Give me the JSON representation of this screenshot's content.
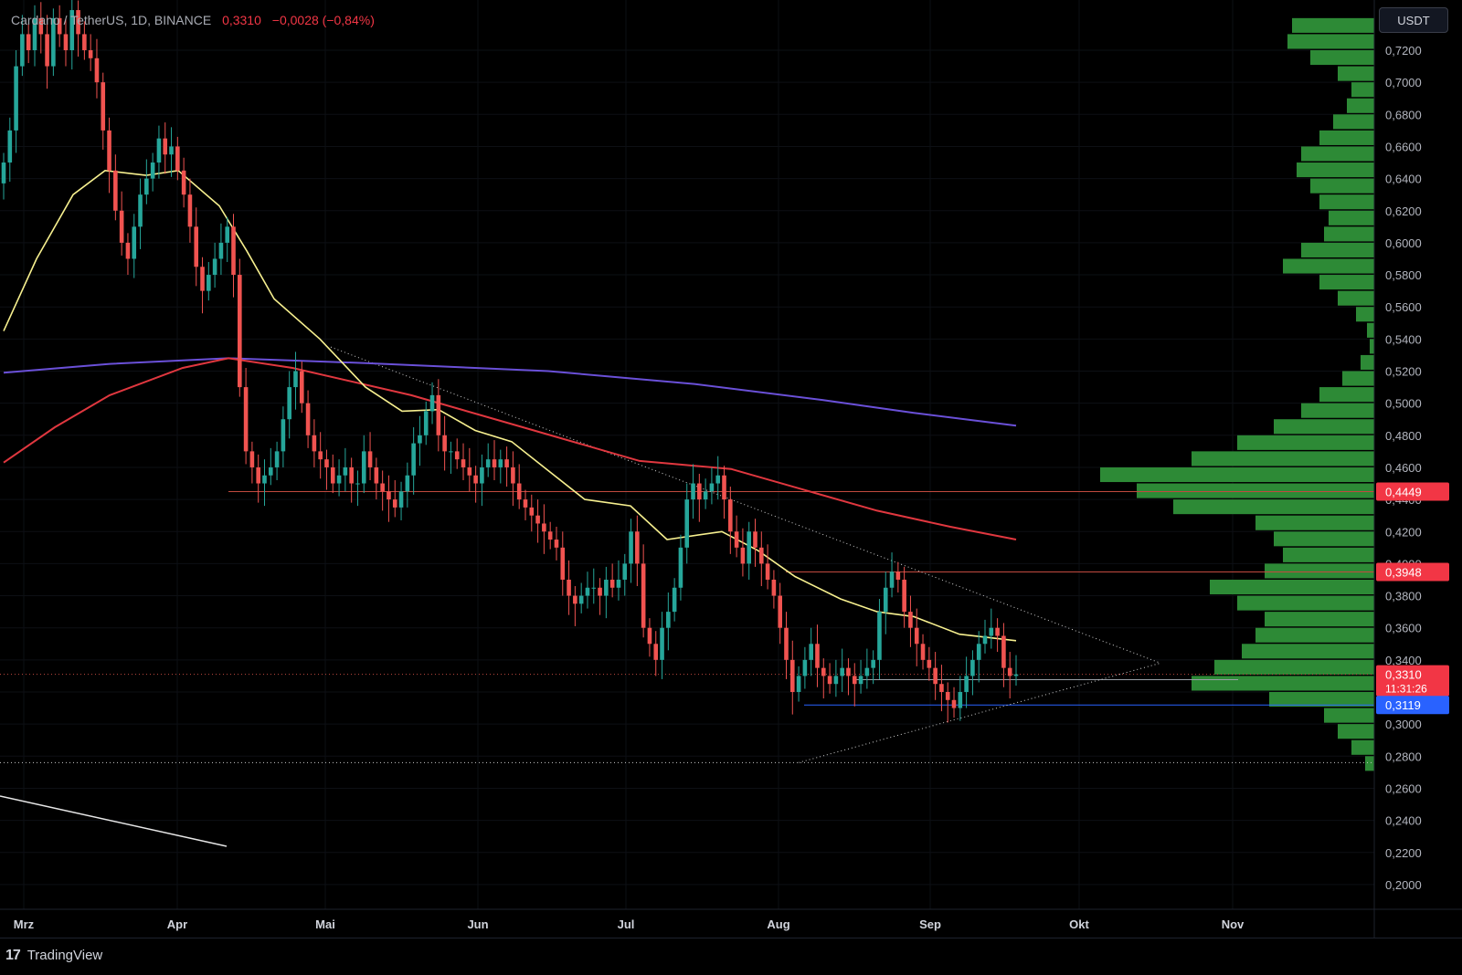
{
  "header": {
    "symbol": "Cardano / TetherUS, 1D, BINANCE",
    "last": "0,3310",
    "change": "−0,0028 (−0,84%)"
  },
  "toolbar": {
    "currency": "USDT"
  },
  "footer": {
    "brand": "TradingView"
  },
  "colors": {
    "up": "#26a69a",
    "down": "#f05350",
    "sma50": "#f7f08f",
    "sma100": "#e0373f",
    "sma200": "#6a50d8",
    "volume_profile": "#2d8a36",
    "blue_level": "#2962ff"
  },
  "chart_data": {
    "type": "candlestick",
    "title": "Cardano / TetherUS, 1D, BINANCE",
    "x_ticks": [
      "Mrz",
      "Apr",
      "Mai",
      "Jun",
      "Jul",
      "Aug",
      "Sep",
      "Okt",
      "Nov"
    ],
    "y_ticks": [
      "0,7200",
      "0,7000",
      "0,6800",
      "0,6600",
      "0,6400",
      "0,6200",
      "0,6000",
      "0,5800",
      "0,5600",
      "0,5400",
      "0,5200",
      "0,5000",
      "0,4800",
      "0,4600",
      "0,4400",
      "0,4200",
      "0,4000",
      "0,3800",
      "0,3600",
      "0,3400",
      "0,3200",
      "0,3000",
      "0,2800",
      "0,2600",
      "0,2400",
      "0,2200",
      "0,2000"
    ],
    "ylim": [
      0.19,
      0.735
    ],
    "price_labels": [
      {
        "value": "0,4449",
        "color": "#f23645"
      },
      {
        "value": "0,3948",
        "color": "#f23645"
      },
      {
        "value": "0,3310",
        "color": "#f23645",
        "countdown": "11:31:26"
      },
      {
        "value": "0,3119",
        "color": "#2962ff"
      }
    ],
    "horizontal_levels": [
      0.4449,
      0.3948,
      0.331,
      0.3119,
      0.276
    ],
    "ohlc_close": [
      0.65,
      0.67,
      0.71,
      0.73,
      0.72,
      0.74,
      0.73,
      0.71,
      0.74,
      0.73,
      0.72,
      0.745,
      0.73,
      0.72,
      0.715,
      0.7,
      0.67,
      0.645,
      0.62,
      0.6,
      0.59,
      0.61,
      0.63,
      0.64,
      0.65,
      0.665,
      0.655,
      0.66,
      0.645,
      0.63,
      0.61,
      0.585,
      0.57,
      0.58,
      0.59,
      0.6,
      0.61,
      0.58,
      0.51,
      0.47,
      0.46,
      0.45,
      0.455,
      0.46,
      0.47,
      0.49,
      0.51,
      0.52,
      0.5,
      0.48,
      0.47,
      0.465,
      0.46,
      0.45,
      0.455,
      0.46,
      0.45,
      0.45,
      0.47,
      0.46,
      0.45,
      0.445,
      0.44,
      0.435,
      0.445,
      0.455,
      0.475,
      0.48,
      0.495,
      0.505,
      0.48,
      0.47,
      0.47,
      0.465,
      0.46,
      0.455,
      0.45,
      0.46,
      0.465,
      0.46,
      0.465,
      0.46,
      0.45,
      0.44,
      0.435,
      0.43,
      0.425,
      0.42,
      0.415,
      0.41,
      0.39,
      0.38,
      0.375,
      0.38,
      0.385,
      0.385,
      0.38,
      0.39,
      0.385,
      0.39,
      0.4,
      0.42,
      0.4,
      0.36,
      0.35,
      0.34,
      0.36,
      0.37,
      0.385,
      0.41,
      0.44,
      0.45,
      0.44,
      0.445,
      0.45,
      0.455,
      0.44,
      0.42,
      0.41,
      0.4,
      0.42,
      0.41,
      0.4,
      0.39,
      0.38,
      0.36,
      0.34,
      0.32,
      0.33,
      0.34,
      0.35,
      0.335,
      0.33,
      0.325,
      0.33,
      0.335,
      0.33,
      0.325,
      0.33,
      0.335,
      0.34,
      0.37,
      0.385,
      0.395,
      0.39,
      0.37,
      0.36,
      0.35,
      0.34,
      0.335,
      0.325,
      0.32,
      0.315,
      0.31,
      0.32,
      0.33,
      0.34,
      0.35,
      0.355,
      0.36,
      0.355,
      0.335,
      0.33,
      0.331
    ]
  }
}
